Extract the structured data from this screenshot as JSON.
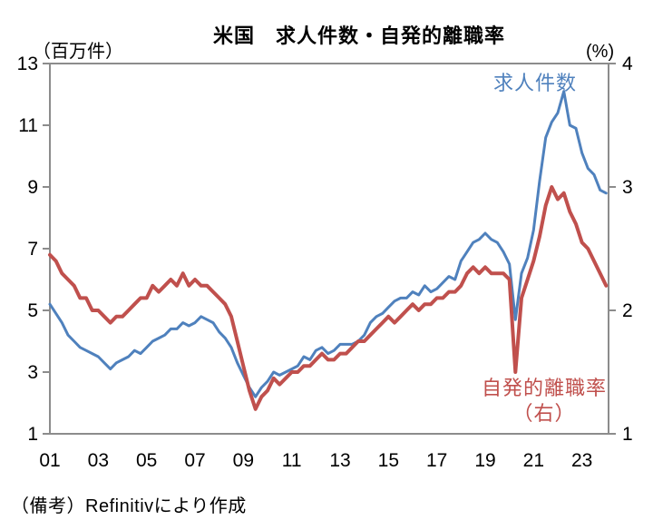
{
  "note": "（備考）Refinitivにより作成",
  "colors": {
    "openings": "#4f81bd",
    "quits": "#c0504d",
    "axis": "#8c8c8c",
    "text": "#000000",
    "background": "#ffffff"
  },
  "chart_data": {
    "type": "line",
    "title": "米国　求人件数・自発的離職率",
    "grid": false,
    "legend_position": "inline-annotations",
    "series_labels": {
      "openings": "求人件数",
      "quits_line1": "自発的離職率",
      "quits_line2": "（右）"
    },
    "x_axis": {
      "tick_labels": [
        "01",
        "03",
        "05",
        "07",
        "09",
        "11",
        "13",
        "15",
        "17",
        "19",
        "21",
        "23"
      ],
      "tick_years": [
        2001,
        2003,
        2005,
        2007,
        2009,
        2011,
        2013,
        2015,
        2017,
        2019,
        2021,
        2023
      ],
      "range": [
        2001,
        2024.1
      ]
    },
    "y_left": {
      "unit": "（百万件）",
      "ticks": [
        13,
        11,
        9,
        7,
        5,
        3,
        1
      ],
      "range": [
        1,
        13
      ]
    },
    "y_right": {
      "unit": "(%)",
      "ticks": [
        4,
        3,
        2,
        1
      ],
      "range": [
        1,
        4
      ]
    },
    "series": [
      {
        "name": "求人件数",
        "axis": "left",
        "unit": "百万件",
        "color": "#4f81bd",
        "stroke_width": 3,
        "points": [
          [
            2001.0,
            5.2
          ],
          [
            2001.25,
            4.9
          ],
          [
            2001.5,
            4.6
          ],
          [
            2001.75,
            4.2
          ],
          [
            2002.0,
            4.0
          ],
          [
            2002.25,
            3.8
          ],
          [
            2002.5,
            3.7
          ],
          [
            2002.75,
            3.6
          ],
          [
            2003.0,
            3.5
          ],
          [
            2003.25,
            3.3
          ],
          [
            2003.5,
            3.1
          ],
          [
            2003.75,
            3.3
          ],
          [
            2004.0,
            3.4
          ],
          [
            2004.25,
            3.5
          ],
          [
            2004.5,
            3.7
          ],
          [
            2004.75,
            3.6
          ],
          [
            2005.0,
            3.8
          ],
          [
            2005.25,
            4.0
          ],
          [
            2005.5,
            4.1
          ],
          [
            2005.75,
            4.2
          ],
          [
            2006.0,
            4.4
          ],
          [
            2006.25,
            4.4
          ],
          [
            2006.5,
            4.6
          ],
          [
            2006.75,
            4.5
          ],
          [
            2007.0,
            4.6
          ],
          [
            2007.25,
            4.8
          ],
          [
            2007.5,
            4.7
          ],
          [
            2007.75,
            4.6
          ],
          [
            2008.0,
            4.3
          ],
          [
            2008.25,
            4.1
          ],
          [
            2008.5,
            3.8
          ],
          [
            2008.75,
            3.3
          ],
          [
            2009.0,
            2.9
          ],
          [
            2009.25,
            2.5
          ],
          [
            2009.5,
            2.2
          ],
          [
            2009.75,
            2.5
          ],
          [
            2010.0,
            2.7
          ],
          [
            2010.25,
            3.0
          ],
          [
            2010.5,
            2.9
          ],
          [
            2010.75,
            3.0
          ],
          [
            2011.0,
            3.1
          ],
          [
            2011.25,
            3.2
          ],
          [
            2011.5,
            3.5
          ],
          [
            2011.75,
            3.4
          ],
          [
            2012.0,
            3.7
          ],
          [
            2012.25,
            3.8
          ],
          [
            2012.5,
            3.6
          ],
          [
            2012.75,
            3.7
          ],
          [
            2013.0,
            3.9
          ],
          [
            2013.25,
            3.9
          ],
          [
            2013.5,
            3.9
          ],
          [
            2013.75,
            4.0
          ],
          [
            2014.0,
            4.2
          ],
          [
            2014.25,
            4.6
          ],
          [
            2014.5,
            4.8
          ],
          [
            2014.75,
            4.9
          ],
          [
            2015.0,
            5.1
          ],
          [
            2015.25,
            5.3
          ],
          [
            2015.5,
            5.4
          ],
          [
            2015.75,
            5.4
          ],
          [
            2016.0,
            5.6
          ],
          [
            2016.25,
            5.5
          ],
          [
            2016.5,
            5.8
          ],
          [
            2016.75,
            5.6
          ],
          [
            2017.0,
            5.7
          ],
          [
            2017.25,
            5.9
          ],
          [
            2017.5,
            6.1
          ],
          [
            2017.75,
            6.0
          ],
          [
            2018.0,
            6.6
          ],
          [
            2018.25,
            6.9
          ],
          [
            2018.5,
            7.2
          ],
          [
            2018.75,
            7.3
          ],
          [
            2019.0,
            7.5
          ],
          [
            2019.25,
            7.3
          ],
          [
            2019.5,
            7.2
          ],
          [
            2019.75,
            6.9
          ],
          [
            2020.0,
            6.5
          ],
          [
            2020.25,
            4.7
          ],
          [
            2020.5,
            6.2
          ],
          [
            2020.75,
            6.7
          ],
          [
            2021.0,
            7.6
          ],
          [
            2021.25,
            9.2
          ],
          [
            2021.5,
            10.6
          ],
          [
            2021.75,
            11.1
          ],
          [
            2022.0,
            11.4
          ],
          [
            2022.25,
            12.1
          ],
          [
            2022.5,
            11.0
          ],
          [
            2022.75,
            10.9
          ],
          [
            2023.0,
            10.1
          ],
          [
            2023.25,
            9.6
          ],
          [
            2023.5,
            9.4
          ],
          [
            2023.75,
            8.9
          ],
          [
            2024.0,
            8.8
          ]
        ]
      },
      {
        "name": "自発的離職率（右）",
        "axis": "right",
        "unit": "%",
        "color": "#c0504d",
        "stroke_width": 4,
        "points": [
          [
            2001.0,
            2.45
          ],
          [
            2001.25,
            2.4
          ],
          [
            2001.5,
            2.3
          ],
          [
            2001.75,
            2.25
          ],
          [
            2002.0,
            2.2
          ],
          [
            2002.25,
            2.1
          ],
          [
            2002.5,
            2.1
          ],
          [
            2002.75,
            2.0
          ],
          [
            2003.0,
            2.0
          ],
          [
            2003.25,
            1.95
          ],
          [
            2003.5,
            1.9
          ],
          [
            2003.75,
            1.95
          ],
          [
            2004.0,
            1.95
          ],
          [
            2004.25,
            2.0
          ],
          [
            2004.5,
            2.05
          ],
          [
            2004.75,
            2.1
          ],
          [
            2005.0,
            2.1
          ],
          [
            2005.25,
            2.2
          ],
          [
            2005.5,
            2.15
          ],
          [
            2005.75,
            2.2
          ],
          [
            2006.0,
            2.25
          ],
          [
            2006.25,
            2.2
          ],
          [
            2006.5,
            2.3
          ],
          [
            2006.75,
            2.2
          ],
          [
            2007.0,
            2.25
          ],
          [
            2007.25,
            2.2
          ],
          [
            2007.5,
            2.2
          ],
          [
            2007.75,
            2.15
          ],
          [
            2008.0,
            2.1
          ],
          [
            2008.25,
            2.05
          ],
          [
            2008.5,
            1.95
          ],
          [
            2008.75,
            1.75
          ],
          [
            2009.0,
            1.55
          ],
          [
            2009.25,
            1.35
          ],
          [
            2009.5,
            1.2
          ],
          [
            2009.75,
            1.3
          ],
          [
            2010.0,
            1.35
          ],
          [
            2010.25,
            1.45
          ],
          [
            2010.5,
            1.4
          ],
          [
            2010.75,
            1.45
          ],
          [
            2011.0,
            1.5
          ],
          [
            2011.25,
            1.5
          ],
          [
            2011.5,
            1.55
          ],
          [
            2011.75,
            1.55
          ],
          [
            2012.0,
            1.6
          ],
          [
            2012.25,
            1.65
          ],
          [
            2012.5,
            1.6
          ],
          [
            2012.75,
            1.6
          ],
          [
            2013.0,
            1.65
          ],
          [
            2013.25,
            1.65
          ],
          [
            2013.5,
            1.7
          ],
          [
            2013.75,
            1.75
          ],
          [
            2014.0,
            1.75
          ],
          [
            2014.25,
            1.8
          ],
          [
            2014.5,
            1.85
          ],
          [
            2014.75,
            1.9
          ],
          [
            2015.0,
            1.95
          ],
          [
            2015.25,
            1.9
          ],
          [
            2015.5,
            1.95
          ],
          [
            2015.75,
            2.0
          ],
          [
            2016.0,
            2.05
          ],
          [
            2016.25,
            2.0
          ],
          [
            2016.5,
            2.05
          ],
          [
            2016.75,
            2.05
          ],
          [
            2017.0,
            2.1
          ],
          [
            2017.25,
            2.1
          ],
          [
            2017.5,
            2.15
          ],
          [
            2017.75,
            2.15
          ],
          [
            2018.0,
            2.2
          ],
          [
            2018.25,
            2.3
          ],
          [
            2018.5,
            2.35
          ],
          [
            2018.75,
            2.3
          ],
          [
            2019.0,
            2.35
          ],
          [
            2019.25,
            2.3
          ],
          [
            2019.5,
            2.3
          ],
          [
            2019.75,
            2.3
          ],
          [
            2020.0,
            2.25
          ],
          [
            2020.25,
            1.5
          ],
          [
            2020.5,
            2.1
          ],
          [
            2020.75,
            2.25
          ],
          [
            2021.0,
            2.4
          ],
          [
            2021.25,
            2.6
          ],
          [
            2021.5,
            2.85
          ],
          [
            2021.75,
            3.0
          ],
          [
            2022.0,
            2.9
          ],
          [
            2022.25,
            2.95
          ],
          [
            2022.5,
            2.8
          ],
          [
            2022.75,
            2.7
          ],
          [
            2023.0,
            2.55
          ],
          [
            2023.25,
            2.5
          ],
          [
            2023.5,
            2.4
          ],
          [
            2023.75,
            2.3
          ],
          [
            2024.0,
            2.2
          ]
        ]
      }
    ]
  }
}
